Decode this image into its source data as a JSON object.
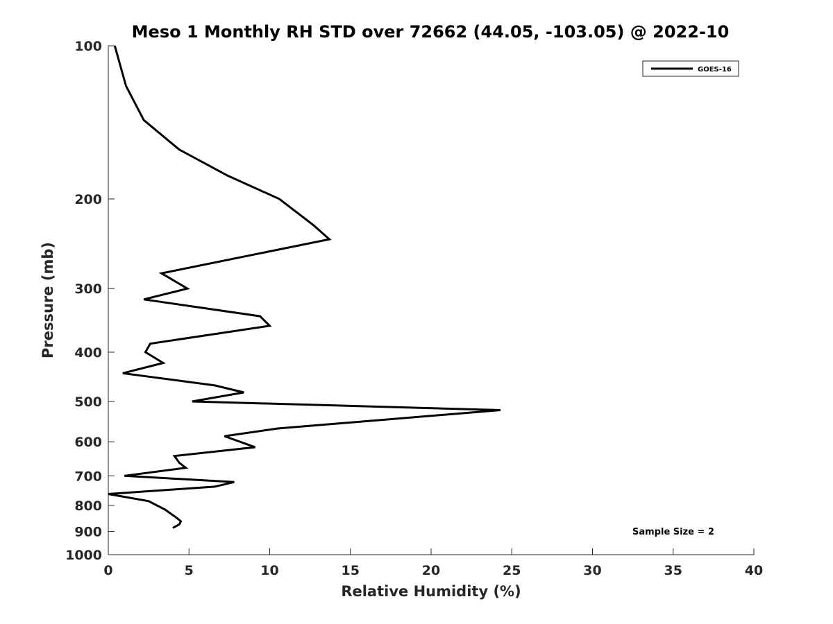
{
  "chart_data": {
    "type": "line",
    "title": "Meso 1 Monthly RH STD over 72662 (44.05, -103.05) @ 2022-10",
    "xlabel": "Relative Humidity (%)",
    "ylabel": "Pressure (mb)",
    "xlim": [
      0,
      40
    ],
    "ylim": [
      100,
      1000
    ],
    "y_scale": "log",
    "y_reversed": true,
    "x_ticks": [
      0,
      5,
      10,
      15,
      20,
      25,
      30,
      35,
      40
    ],
    "x_tick_labels": [
      "0",
      "5",
      "10",
      "15",
      "20",
      "25",
      "30",
      "35",
      "40"
    ],
    "y_ticks": [
      100,
      200,
      300,
      400,
      500,
      600,
      700,
      800,
      900,
      1000
    ],
    "y_tick_labels": [
      "100",
      "200",
      "300",
      "400",
      "500",
      "600",
      "700",
      "800",
      "900",
      "1000"
    ],
    "grid": false,
    "legend_position": "top-right",
    "series": [
      {
        "name": "GOES-16",
        "color": "#000000",
        "points": [
          {
            "x": 0.4,
            "y": 100
          },
          {
            "x": 1.1,
            "y": 120
          },
          {
            "x": 2.2,
            "y": 140
          },
          {
            "x": 4.4,
            "y": 160
          },
          {
            "x": 7.4,
            "y": 180
          },
          {
            "x": 10.6,
            "y": 200
          },
          {
            "x": 12.7,
            "y": 225
          },
          {
            "x": 13.7,
            "y": 240
          },
          {
            "x": 3.3,
            "y": 280
          },
          {
            "x": 4.9,
            "y": 300
          },
          {
            "x": 2.2,
            "y": 315
          },
          {
            "x": 9.4,
            "y": 340
          },
          {
            "x": 10.0,
            "y": 355
          },
          {
            "x": 2.6,
            "y": 385
          },
          {
            "x": 2.3,
            "y": 400
          },
          {
            "x": 3.4,
            "y": 420
          },
          {
            "x": 0.9,
            "y": 440
          },
          {
            "x": 6.6,
            "y": 465
          },
          {
            "x": 8.4,
            "y": 480
          },
          {
            "x": 5.2,
            "y": 500
          },
          {
            "x": 24.3,
            "y": 520
          },
          {
            "x": 10.5,
            "y": 565
          },
          {
            "x": 7.2,
            "y": 585
          },
          {
            "x": 9.1,
            "y": 615
          },
          {
            "x": 4.1,
            "y": 640
          },
          {
            "x": 4.4,
            "y": 660
          },
          {
            "x": 4.8,
            "y": 675
          },
          {
            "x": 1.0,
            "y": 700
          },
          {
            "x": 7.8,
            "y": 720
          },
          {
            "x": 6.6,
            "y": 735
          },
          {
            "x": 0.0,
            "y": 760
          },
          {
            "x": 2.5,
            "y": 785
          },
          {
            "x": 3.5,
            "y": 815
          },
          {
            "x": 4.2,
            "y": 845
          },
          {
            "x": 4.5,
            "y": 860
          },
          {
            "x": 4.4,
            "y": 872
          },
          {
            "x": 4.0,
            "y": 886
          }
        ]
      }
    ],
    "annotations": [
      "Sample Size = 2"
    ]
  }
}
